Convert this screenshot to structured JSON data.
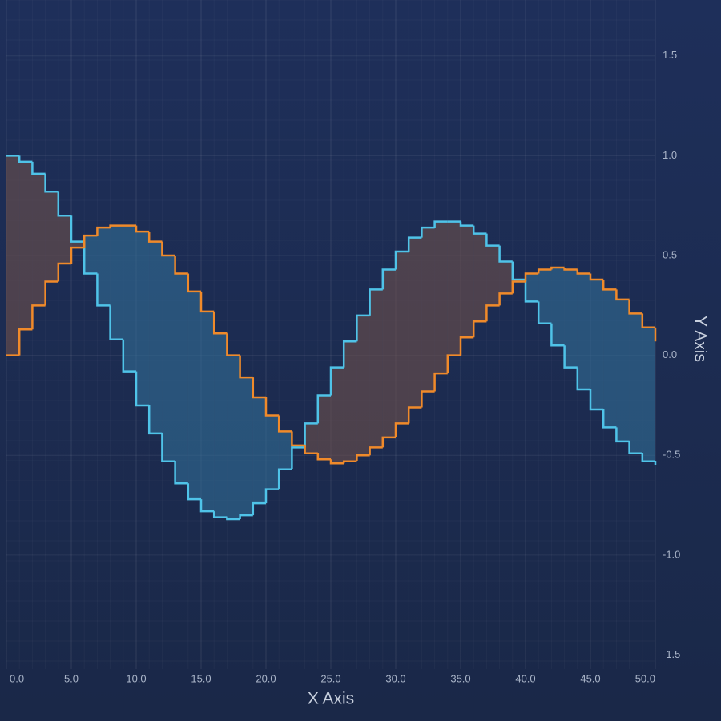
{
  "chart_data": {
    "type": "step-band",
    "x_axis_title": "X Axis",
    "y_axis_title": "Y Axis",
    "x": [
      0,
      1,
      2,
      3,
      4,
      5,
      6,
      7,
      8,
      9,
      10,
      11,
      12,
      13,
      14,
      15,
      16,
      17,
      18,
      19,
      20,
      21,
      22,
      23,
      24,
      25,
      26,
      27,
      28,
      29,
      30,
      31,
      32,
      33,
      34,
      35,
      36,
      37,
      38,
      39,
      40,
      41,
      42,
      43,
      44,
      45,
      46,
      47,
      48,
      49,
      50
    ],
    "series": [
      {
        "color": "#4fc3e8",
        "fill": "rgba(110,80,75,0.6)",
        "values": [
          1.0,
          0.97,
          0.91,
          0.82,
          0.7,
          0.57,
          0.41,
          0.25,
          0.08,
          -0.08,
          -0.25,
          -0.39,
          -0.53,
          -0.64,
          -0.72,
          -0.78,
          -0.81,
          -0.82,
          -0.8,
          -0.74,
          -0.67,
          -0.57,
          -0.46,
          -0.34,
          -0.2,
          -0.06,
          0.07,
          0.2,
          0.33,
          0.43,
          0.52,
          0.59,
          0.64,
          0.67,
          0.67,
          0.65,
          0.61,
          0.55,
          0.47,
          0.38,
          0.27,
          0.16,
          0.05,
          -0.06,
          -0.17,
          -0.27,
          -0.36,
          -0.43,
          -0.49,
          -0.53,
          -0.55
        ]
      },
      {
        "color": "#f08a2a",
        "fill": "rgba(50,110,150,0.6)",
        "values": [
          0.0,
          0.13,
          0.25,
          0.37,
          0.46,
          0.54,
          0.6,
          0.64,
          0.65,
          0.65,
          0.62,
          0.57,
          0.5,
          0.41,
          0.32,
          0.22,
          0.11,
          0.0,
          -0.11,
          -0.21,
          -0.3,
          -0.38,
          -0.45,
          -0.49,
          -0.52,
          -0.54,
          -0.53,
          -0.5,
          -0.46,
          -0.41,
          -0.34,
          -0.26,
          -0.18,
          -0.09,
          0.0,
          0.09,
          0.17,
          0.25,
          0.31,
          0.37,
          0.41,
          0.43,
          0.44,
          0.43,
          0.41,
          0.38,
          0.33,
          0.28,
          0.21,
          0.14,
          0.07
        ]
      }
    ],
    "xlim": [
      0,
      50
    ],
    "xticks": [
      {
        "value": 0,
        "label": "0.0"
      },
      {
        "value": 5,
        "label": "5.0"
      },
      {
        "value": 10,
        "label": "10.0"
      },
      {
        "value": 15,
        "label": "15.0"
      },
      {
        "value": 20,
        "label": "20.0"
      },
      {
        "value": 25,
        "label": "25.0"
      },
      {
        "value": 30,
        "label": "30.0"
      },
      {
        "value": 35,
        "label": "35.0"
      },
      {
        "value": 40,
        "label": "40.0"
      },
      {
        "value": 45,
        "label": "45.0"
      },
      {
        "value": 50,
        "label": "50.0"
      }
    ],
    "ylim": [
      -1.57,
      1.78
    ],
    "yticks": [
      1.5,
      {
        "value": 1,
        "label": "1.0"
      },
      0.5,
      {
        "value": 0,
        "label": "0.0"
      },
      -0.5,
      {
        "value": -1,
        "label": "-1.0"
      },
      -1.5
    ],
    "grid": true
  }
}
